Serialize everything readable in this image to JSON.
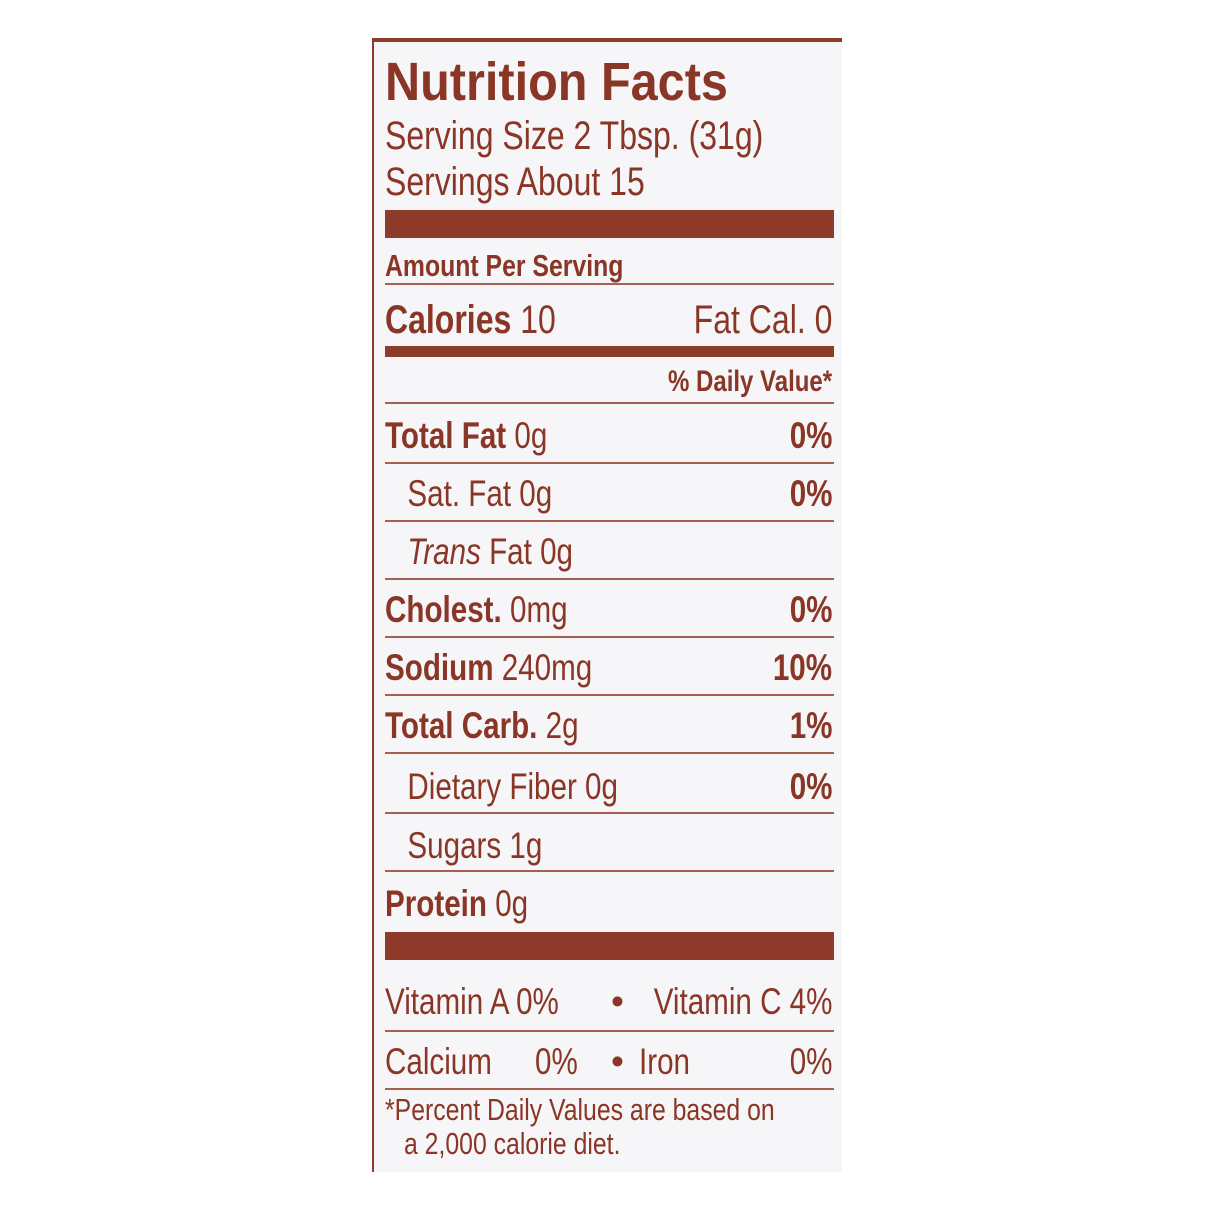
{
  "label": {
    "title": "Nutrition Facts",
    "serving_size": "Serving Size 2 Tbsp. (31g)",
    "servings": "Servings About 15",
    "amount_per_serving": "Amount Per Serving",
    "calories_label": "Calories",
    "calories_value": "10",
    "fat_cal": "Fat Cal. 0",
    "daily_value_header": "% Daily Value*",
    "nutrients": [
      {
        "name": "Total Fat",
        "amount": "0g",
        "dv": "0%"
      },
      {
        "name": "Sat. Fat",
        "amount": "0g",
        "dv": "0%"
      },
      {
        "name": "Trans",
        "amount": "Fat 0g",
        "dv": ""
      },
      {
        "name": "Cholest.",
        "amount": "0mg",
        "dv": "0%"
      },
      {
        "name": "Sodium",
        "amount": "240mg",
        "dv": "10%"
      },
      {
        "name": "Total Carb.",
        "amount": "2g",
        "dv": "1%"
      },
      {
        "name": "Dietary Fiber",
        "amount": "0g",
        "dv": "0%"
      },
      {
        "name": "Sugars",
        "amount": "1g",
        "dv": ""
      },
      {
        "name": "Protein",
        "amount": "0g",
        "dv": ""
      }
    ],
    "vitamins_row1": {
      "left": "Vitamin A 0%",
      "sep": "•",
      "right": "Vitamin C 4%"
    },
    "vitamins_row2": {
      "left_name": "Calcium",
      "left_val": "0%",
      "sep": "•",
      "right_name": "Iron",
      "right_val": "0%"
    },
    "footnote_line1": "*Percent Daily Values are based on",
    "footnote_line2": "a 2,000 calorie diet."
  },
  "colors": {
    "ink": "#8a3626",
    "background": "#f6f5f7"
  }
}
